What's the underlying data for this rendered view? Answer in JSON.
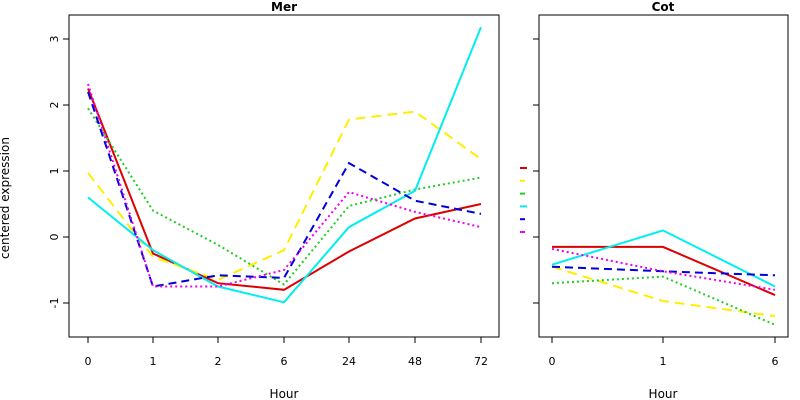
{
  "chart_data": [
    {
      "type": "line",
      "title": "Mer",
      "xlabel": "Hour",
      "ylabel": "centered expression",
      "categories": [
        "0",
        "1",
        "2",
        "6",
        "24",
        "48",
        "72"
      ],
      "ylim": [
        -1.5,
        3.3
      ],
      "yticks": [
        -1,
        0,
        1,
        2,
        3
      ],
      "series": [
        {
          "color": "#dd0000",
          "dash": "solid",
          "values": [
            2.25,
            -0.25,
            -0.7,
            -0.8,
            -0.22,
            0.28,
            0.5
          ]
        },
        {
          "color": "#ffee00",
          "dash": "long-dash",
          "values": [
            0.97,
            -0.3,
            -0.65,
            -0.2,
            1.78,
            1.9,
            1.18
          ]
        },
        {
          "color": "#22cc22",
          "dash": "dotted",
          "values": [
            1.95,
            0.4,
            -0.12,
            -0.72,
            0.47,
            0.72,
            0.9
          ]
        },
        {
          "color": "#00eeee",
          "dash": "solid",
          "values": [
            0.6,
            -0.2,
            -0.75,
            -0.99,
            0.15,
            0.7,
            3.18
          ]
        },
        {
          "color": "#0000dd",
          "dash": "dashed",
          "values": [
            2.2,
            -0.75,
            -0.58,
            -0.62,
            1.12,
            0.55,
            0.35
          ]
        },
        {
          "color": "#ee00ee",
          "dash": "dotted",
          "values": [
            2.32,
            -0.75,
            -0.75,
            -0.5,
            0.68,
            0.38,
            0.15
          ]
        }
      ]
    },
    {
      "type": "line",
      "title": "Cot",
      "xlabel": "Hour",
      "categories": [
        "0",
        "1",
        "6"
      ],
      "ylim": [
        -1.5,
        3.3
      ],
      "series": [
        {
          "color": "#dd0000",
          "dash": "solid",
          "values": [
            -0.15,
            -0.15,
            -0.88
          ]
        },
        {
          "color": "#ffee00",
          "dash": "long-dash",
          "values": [
            -0.45,
            -0.97,
            -1.2
          ]
        },
        {
          "color": "#22cc22",
          "dash": "dotted",
          "values": [
            -0.7,
            -0.6,
            -1.33
          ]
        },
        {
          "color": "#00eeee",
          "dash": "solid",
          "values": [
            -0.42,
            0.1,
            -0.75
          ]
        },
        {
          "color": "#0000dd",
          "dash": "dashed",
          "values": [
            -0.45,
            -0.52,
            -0.58
          ]
        },
        {
          "color": "#ee00ee",
          "dash": "dotted",
          "values": [
            -0.18,
            -0.52,
            -0.8
          ]
        }
      ]
    }
  ]
}
